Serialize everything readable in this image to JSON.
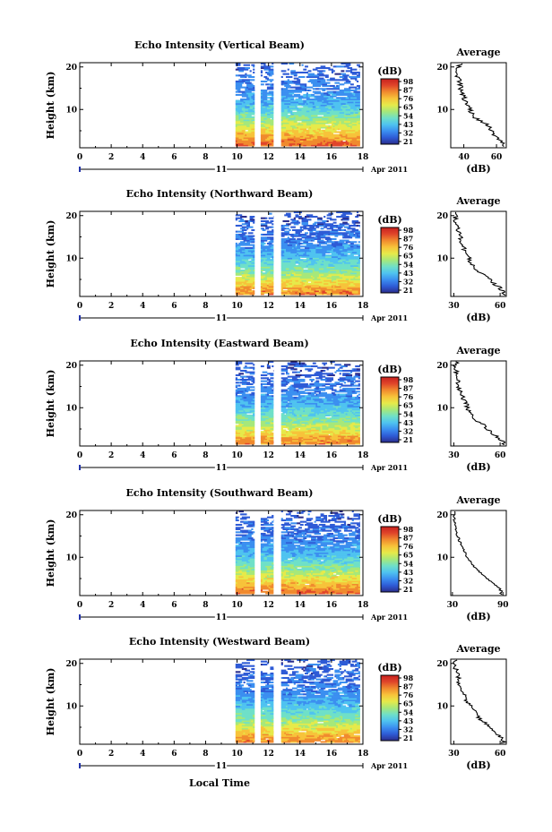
{
  "figure": {
    "x_axis_label": "Local Time",
    "colors": {
      "colormap": [
        "#2b2d8c",
        "#2e5bd6",
        "#3b8ff0",
        "#4fc3f0",
        "#6fe0c8",
        "#a6e87a",
        "#e6ea4a",
        "#f7c33a",
        "#f08a2e",
        "#e0452a",
        "#c8201e"
      ]
    }
  },
  "panels": [
    {
      "title": "Echo Intensity (Vertical Beam)",
      "ylabel": "Height (km)",
      "x_ticks": [
        "0",
        "2",
        "4",
        "6",
        "8",
        "10",
        "12",
        "14",
        "16",
        "18"
      ],
      "y_ticks": [
        "20",
        "10"
      ],
      "date_day": "11",
      "date_month": "Apr 2011",
      "colorbar_unit": "(dB)",
      "colorbar_ticks": [
        "98",
        "87",
        "76",
        "65",
        "54",
        "43",
        "32",
        "21"
      ],
      "avg_title": "Average",
      "avg_x_ticks": [
        "40",
        "60"
      ],
      "avg_y_ticks": [
        "20",
        "10"
      ],
      "avg_xlabel": "(dB)"
    },
    {
      "title": "Echo Intensity (Northward Beam)",
      "ylabel": "Height (km)",
      "x_ticks": [
        "0",
        "2",
        "4",
        "6",
        "8",
        "10",
        "12",
        "14",
        "16",
        "18"
      ],
      "y_ticks": [
        "20",
        "10"
      ],
      "date_day": "11",
      "date_month": "Apr 2011",
      "colorbar_unit": "(dB)",
      "colorbar_ticks": [
        "98",
        "87",
        "76",
        "65",
        "54",
        "43",
        "32",
        "21"
      ],
      "avg_title": "Average",
      "avg_x_ticks": [
        "30",
        "60"
      ],
      "avg_y_ticks": [
        "20",
        "10"
      ],
      "avg_xlabel": "(dB)"
    },
    {
      "title": "Echo Intensity (Eastward Beam)",
      "ylabel": "Height (km)",
      "x_ticks": [
        "0",
        "2",
        "4",
        "6",
        "8",
        "10",
        "12",
        "14",
        "16",
        "18"
      ],
      "y_ticks": [
        "20",
        "10"
      ],
      "date_day": "11",
      "date_month": "Apr 2011",
      "colorbar_unit": "(dB)",
      "colorbar_ticks": [
        "98",
        "87",
        "76",
        "65",
        "54",
        "43",
        "32",
        "21"
      ],
      "avg_title": "Average",
      "avg_x_ticks": [
        "30",
        "60"
      ],
      "avg_y_ticks": [
        "20",
        "10"
      ],
      "avg_xlabel": "(dB)"
    },
    {
      "title": "Echo Intensity (Southward Beam)",
      "ylabel": "Height (km)",
      "x_ticks": [
        "0",
        "2",
        "4",
        "6",
        "8",
        "10",
        "12",
        "14",
        "16",
        "18"
      ],
      "y_ticks": [
        "20",
        "10"
      ],
      "date_day": "11",
      "date_month": "Apr 2011",
      "colorbar_unit": "(dB)",
      "colorbar_ticks": [
        "98",
        "87",
        "76",
        "65",
        "54",
        "43",
        "32",
        "21"
      ],
      "avg_title": "Average",
      "avg_x_ticks": [
        "30",
        "90"
      ],
      "avg_y_ticks": [
        "20",
        "10"
      ],
      "avg_xlabel": "(dB)"
    },
    {
      "title": "Echo Intensity (Westward Beam)",
      "ylabel": "Height (km)",
      "x_ticks": [
        "0",
        "2",
        "4",
        "6",
        "8",
        "10",
        "12",
        "14",
        "16",
        "18"
      ],
      "y_ticks": [
        "20",
        "10"
      ],
      "date_day": "11",
      "date_month": "Apr 2011",
      "colorbar_unit": "(dB)",
      "colorbar_ticks": [
        "98",
        "87",
        "76",
        "65",
        "54",
        "43",
        "32",
        "21"
      ],
      "avg_title": "Average",
      "avg_x_ticks": [
        "30",
        "60"
      ],
      "avg_y_ticks": [
        "20",
        "10"
      ],
      "avg_xlabel": "(dB)"
    }
  ],
  "chart_data": [
    {
      "type": "heatmap",
      "title": "Echo Intensity (Vertical Beam)",
      "xlabel": "Local Time",
      "ylabel": "Height (km)",
      "xlim": [
        0,
        18
      ],
      "ylim": [
        1,
        21
      ],
      "zunit": "dB",
      "zlim": [
        21,
        98
      ],
      "data_time_ranges": [
        [
          9.9,
          11.1
        ],
        [
          11.5,
          12.3
        ],
        [
          12.8,
          17.8
        ]
      ],
      "intensity_profile": {
        "heights_km": [
          2,
          4,
          6,
          8,
          10,
          12,
          14,
          16,
          18,
          20
        ],
        "values_db": [
          84,
          74,
          64,
          56,
          48,
          42,
          38,
          35,
          33,
          32
        ]
      }
    },
    {
      "type": "line",
      "title": "Average",
      "xlabel": "(dB)",
      "ylabel": "Height (km)",
      "xlim": [
        32,
        66
      ],
      "ylim": [
        1,
        21
      ],
      "x": [
        64,
        62,
        58,
        57,
        56,
        52,
        47,
        45,
        44,
        42,
        41,
        40,
        39,
        38,
        38,
        37,
        36,
        36,
        37,
        38
      ],
      "y": [
        2,
        3,
        4,
        5,
        6,
        7,
        8,
        9,
        10,
        11,
        12,
        13,
        14,
        15,
        16,
        17,
        18,
        19,
        20,
        21
      ]
    },
    {
      "type": "heatmap",
      "title": "Echo Intensity (Northward Beam)",
      "xlabel": "Local Time",
      "ylabel": "Height (km)",
      "xlim": [
        0,
        18
      ],
      "ylim": [
        1,
        21
      ],
      "zunit": "dB",
      "zlim": [
        21,
        98
      ],
      "data_time_ranges": [
        [
          9.9,
          11.1
        ],
        [
          11.5,
          12.3
        ],
        [
          12.8,
          17.8
        ]
      ],
      "intensity_profile": {
        "heights_km": [
          2,
          4,
          6,
          8,
          10,
          12,
          14,
          16,
          18,
          20
        ],
        "values_db": [
          80,
          70,
          60,
          52,
          45,
          40,
          36,
          34,
          32,
          31
        ]
      }
    },
    {
      "type": "line",
      "title": "Average",
      "xlabel": "(dB)",
      "ylabel": "Height (km)",
      "xlim": [
        28,
        64
      ],
      "ylim": [
        1,
        21
      ],
      "x": [
        62,
        60,
        56,
        53,
        50,
        46,
        43,
        41,
        40,
        38,
        37,
        36,
        35,
        34,
        33,
        33,
        32,
        31,
        31,
        32
      ],
      "y": [
        2,
        3,
        4,
        5,
        6,
        7,
        8,
        9,
        10,
        11,
        12,
        13,
        14,
        15,
        16,
        17,
        18,
        19,
        20,
        21
      ]
    },
    {
      "type": "heatmap",
      "title": "Echo Intensity (Eastward Beam)",
      "xlabel": "Local Time",
      "ylabel": "Height (km)",
      "xlim": [
        0,
        18
      ],
      "ylim": [
        1,
        21
      ],
      "zunit": "dB",
      "zlim": [
        21,
        98
      ],
      "data_time_ranges": [
        [
          9.9,
          11.1
        ],
        [
          11.5,
          12.3
        ],
        [
          12.8,
          17.8
        ]
      ],
      "intensity_profile": {
        "heights_km": [
          2,
          4,
          6,
          8,
          10,
          12,
          14,
          16,
          18,
          20
        ],
        "values_db": [
          80,
          70,
          60,
          52,
          45,
          40,
          36,
          34,
          32,
          31
        ]
      }
    },
    {
      "type": "line",
      "title": "Average",
      "xlabel": "(dB)",
      "ylabel": "Height (km)",
      "xlim": [
        28,
        64
      ],
      "ylim": [
        1,
        21
      ],
      "x": [
        62,
        59,
        55,
        52,
        49,
        45,
        42,
        40,
        39,
        38,
        36,
        35,
        34,
        33,
        33,
        32,
        32,
        31,
        31,
        32
      ],
      "y": [
        2,
        3,
        4,
        5,
        6,
        7,
        8,
        9,
        10,
        11,
        12,
        13,
        14,
        15,
        16,
        17,
        18,
        19,
        20,
        21
      ]
    },
    {
      "type": "heatmap",
      "title": "Echo Intensity (Southward Beam)",
      "xlabel": "Local Time",
      "ylabel": "Height (km)",
      "xlim": [
        0,
        18
      ],
      "ylim": [
        1,
        21
      ],
      "zunit": "dB",
      "zlim": [
        21,
        98
      ],
      "data_time_ranges": [
        [
          9.9,
          11.1
        ],
        [
          11.5,
          12.3
        ],
        [
          12.8,
          17.8
        ]
      ],
      "intensity_profile": {
        "heights_km": [
          2,
          4,
          6,
          8,
          10,
          12,
          14,
          16,
          18,
          20
        ],
        "values_db": [
          82,
          72,
          62,
          54,
          46,
          41,
          37,
          34,
          32,
          31
        ]
      }
    },
    {
      "type": "line",
      "title": "Average",
      "xlabel": "(dB)",
      "ylabel": "Height (km)",
      "xlim": [
        28,
        94
      ],
      "ylim": [
        1,
        21
      ],
      "x": [
        88,
        84,
        77,
        72,
        66,
        60,
        55,
        52,
        48,
        45,
        42,
        40,
        38,
        36,
        35,
        33,
        34,
        32,
        33,
        31
      ],
      "y": [
        2,
        3,
        4,
        5,
        6,
        7,
        8,
        9,
        10,
        11,
        12,
        13,
        14,
        15,
        16,
        17,
        18,
        19,
        20,
        21
      ]
    },
    {
      "type": "heatmap",
      "title": "Echo Intensity (Westward Beam)",
      "xlabel": "Local Time",
      "ylabel": "Height (km)",
      "xlim": [
        0,
        18
      ],
      "ylim": [
        1,
        21
      ],
      "zunit": "dB",
      "zlim": [
        21,
        98
      ],
      "data_time_ranges": [
        [
          9.9,
          11.1
        ],
        [
          11.5,
          12.3
        ],
        [
          12.8,
          17.8
        ]
      ],
      "intensity_profile": {
        "heights_km": [
          2,
          4,
          6,
          8,
          10,
          12,
          14,
          16,
          18,
          20
        ],
        "values_db": [
          80,
          70,
          60,
          52,
          45,
          40,
          36,
          34,
          32,
          31
        ]
      }
    },
    {
      "type": "line",
      "title": "Average",
      "xlabel": "(dB)",
      "ylabel": "Height (km)",
      "xlim": [
        28,
        64
      ],
      "ylim": [
        1,
        21
      ],
      "x": [
        62,
        59,
        56,
        53,
        50,
        47,
        45,
        43,
        41,
        39,
        37,
        36,
        35,
        34,
        33,
        33,
        32,
        31,
        31,
        32
      ],
      "y": [
        2,
        3,
        4,
        5,
        6,
        7,
        8,
        9,
        10,
        11,
        12,
        13,
        14,
        15,
        16,
        17,
        18,
        19,
        20,
        21
      ]
    }
  ]
}
